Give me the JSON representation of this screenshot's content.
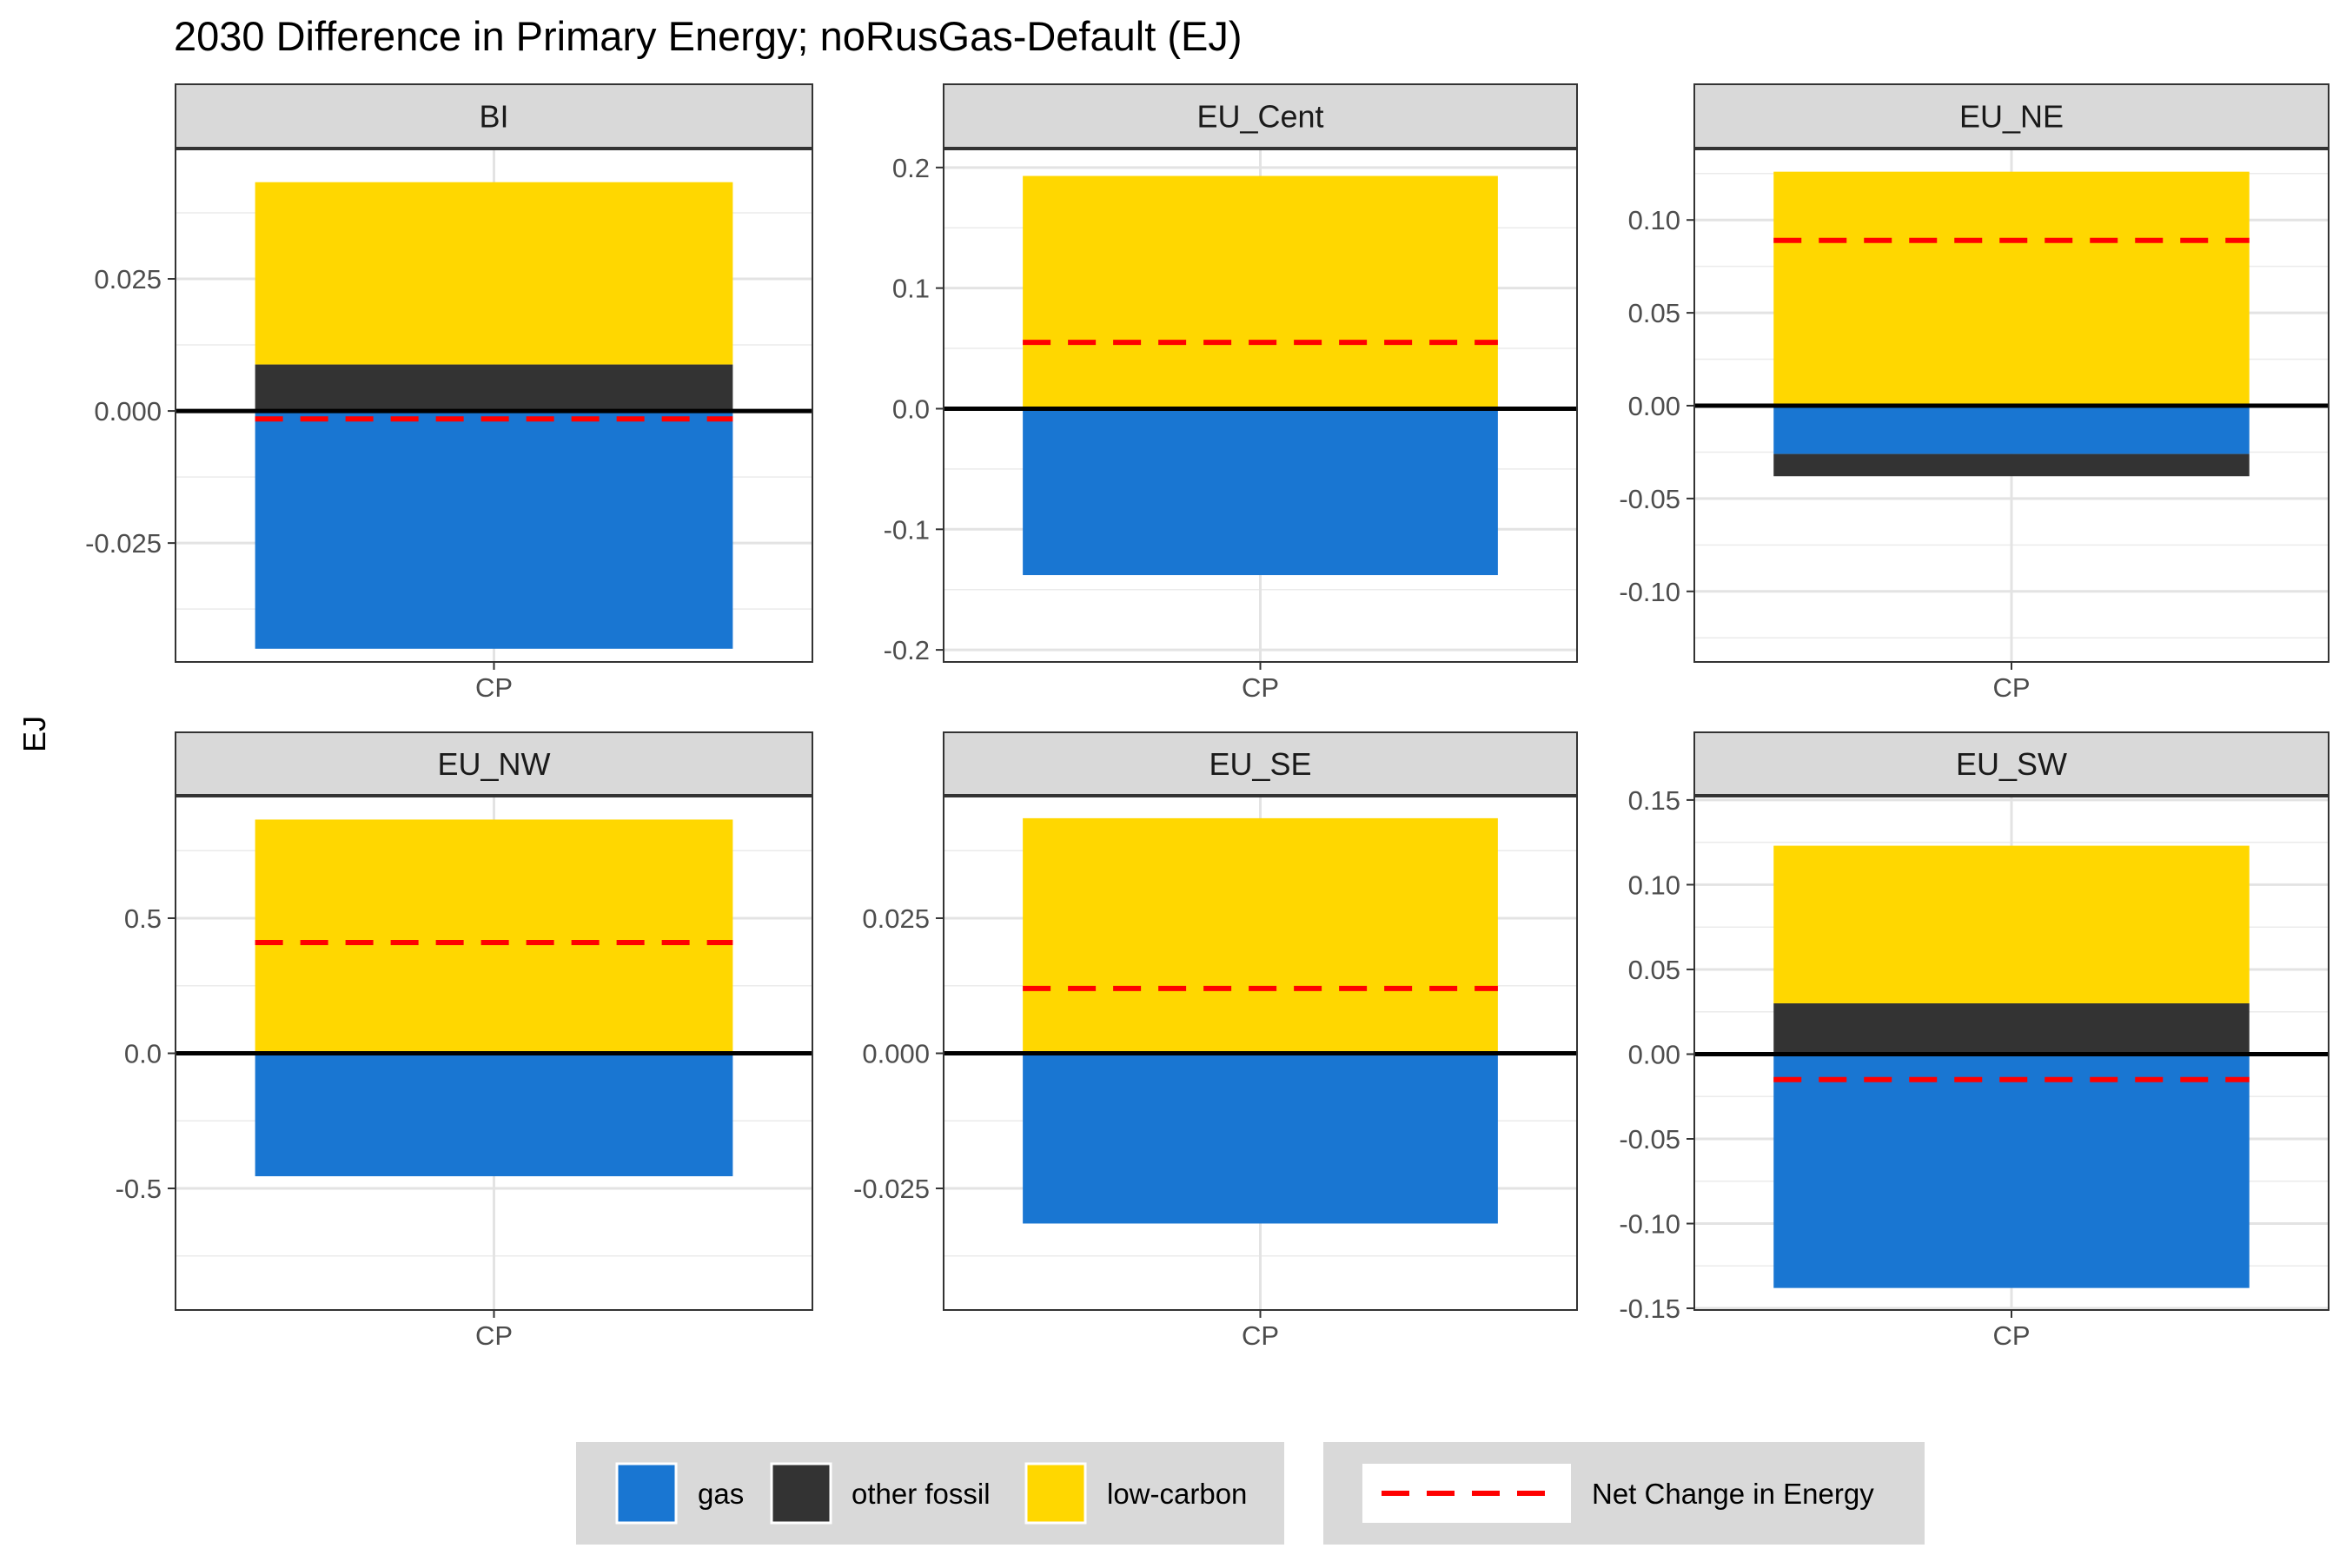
{
  "chart_data": {
    "type": "bar",
    "title": "2030 Difference in Primary Energy; noRusGas-Default (EJ)",
    "ylabel": "EJ",
    "xlabel": "",
    "category": "CP",
    "stacked": true,
    "grid": true,
    "legend_position": "bottom",
    "colors": {
      "gas": "#1976D2",
      "other fossil": "#333333",
      "low-carbon": "#FFD700",
      "net": "#FF0000",
      "strip": "#D9D9D9"
    },
    "legend": {
      "fill_entries": [
        "gas",
        "other fossil",
        "low-carbon"
      ],
      "line_entry": "Net Change in Energy"
    },
    "panels": [
      {
        "region": "BI",
        "ylim": [
          -0.0475,
          0.0495
        ],
        "ticks": [
          -0.025,
          0.0,
          0.025
        ],
        "tick_labels": [
          "-0.025",
          "0.000",
          "0.025"
        ],
        "minor_ticks": [
          -0.0375,
          -0.0125,
          0.0125,
          0.0375
        ],
        "values": {
          "gas": -0.045,
          "other fossil": 0.0088,
          "low-carbon": 0.0345
        },
        "net": -0.0015
      },
      {
        "region": "EU_Cent",
        "ylim": [
          -0.21,
          0.215
        ],
        "ticks": [
          -0.2,
          -0.1,
          0.0,
          0.1,
          0.2
        ],
        "tick_labels": [
          "-0.2",
          "-0.1",
          "0.0",
          "0.1",
          "0.2"
        ],
        "minor_ticks": [
          -0.15,
          -0.05,
          0.05,
          0.15
        ],
        "values": {
          "gas": -0.138,
          "other fossil": 0.0,
          "low-carbon": 0.193
        },
        "net": 0.055
      },
      {
        "region": "EU_NE",
        "ylim": [
          -0.138,
          0.138
        ],
        "ticks": [
          -0.1,
          -0.05,
          0.0,
          0.05,
          0.1
        ],
        "tick_labels": [
          "-0.10",
          "-0.05",
          "0.00",
          "0.05",
          "0.10"
        ],
        "minor_ticks": [
          -0.125,
          -0.075,
          -0.025,
          0.025,
          0.075,
          0.125
        ],
        "values": {
          "gas": -0.026,
          "other fossil": -0.012,
          "low-carbon": 0.126
        },
        "net": 0.089
      },
      {
        "region": "EU_NW",
        "ylim": [
          -0.95,
          0.95
        ],
        "ticks": [
          -0.5,
          0.0,
          0.5
        ],
        "tick_labels": [
          "-0.5",
          "0.0",
          "0.5"
        ],
        "minor_ticks": [
          -0.75,
          -0.25,
          0.25,
          0.75
        ],
        "values": {
          "gas": -0.455,
          "other fossil": 0.0,
          "low-carbon": 0.865
        },
        "net": 0.41
      },
      {
        "region": "EU_SE",
        "ylim": [
          -0.0475,
          0.0475
        ],
        "ticks": [
          -0.025,
          0.0,
          0.025
        ],
        "tick_labels": [
          "-0.025",
          "0.000",
          "0.025"
        ],
        "minor_ticks": [
          -0.0375,
          -0.0125,
          0.0125,
          0.0375
        ],
        "values": {
          "gas": -0.0315,
          "other fossil": 0.0,
          "low-carbon": 0.0435
        },
        "net": 0.012
      },
      {
        "region": "EU_SW",
        "ylim": [
          -0.151,
          0.152
        ],
        "ticks": [
          -0.15,
          -0.1,
          -0.05,
          0.0,
          0.05,
          0.1,
          0.15
        ],
        "tick_labels": [
          "-0.15",
          "-0.10",
          "-0.05",
          "0.00",
          "0.05",
          "0.10",
          "0.15"
        ],
        "minor_ticks": [
          -0.125,
          -0.075,
          -0.025,
          0.025,
          0.075,
          0.125
        ],
        "values": {
          "gas": -0.138,
          "other fossil": 0.03,
          "low-carbon": 0.093
        },
        "net": -0.015
      }
    ]
  }
}
